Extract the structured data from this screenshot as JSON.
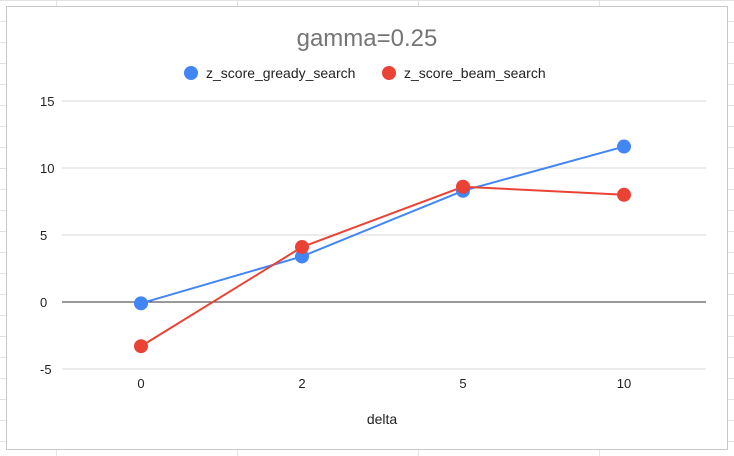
{
  "chart_data": {
    "type": "line",
    "title": "gamma=0.25",
    "xlabel": "delta",
    "ylabel": "",
    "categories": [
      "0",
      "2",
      "5",
      "10"
    ],
    "ylim": [
      -5,
      15
    ],
    "yticks": [
      -5,
      0,
      5,
      10,
      15
    ],
    "grid": true,
    "legend_position": "top",
    "series": [
      {
        "name": "z_score_gready_search",
        "color": "#4285f4",
        "values": [
          -0.1,
          3.4,
          8.3,
          11.6
        ]
      },
      {
        "name": "z_score_beam_search",
        "color": "#ea4335",
        "values": [
          -3.3,
          4.1,
          8.6,
          8.0
        ]
      }
    ]
  }
}
